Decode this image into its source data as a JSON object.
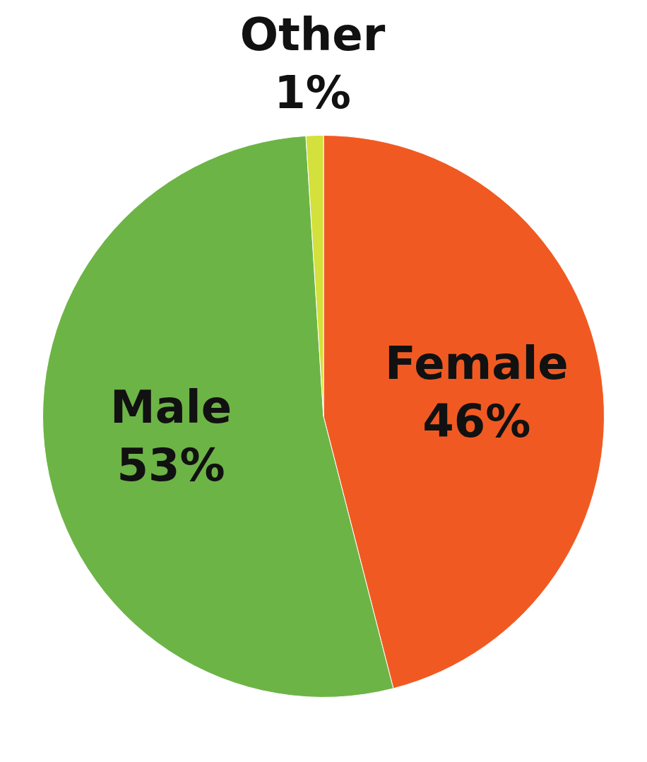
{
  "chart_data": {
    "type": "pie",
    "categories": [
      "Female",
      "Male",
      "Other"
    ],
    "values": [
      46,
      53,
      1
    ],
    "colors": [
      "#f05a22",
      "#6db446",
      "#d4e03c"
    ],
    "value_labels": [
      "46%",
      "53%",
      "1%"
    ],
    "legend": false
  }
}
